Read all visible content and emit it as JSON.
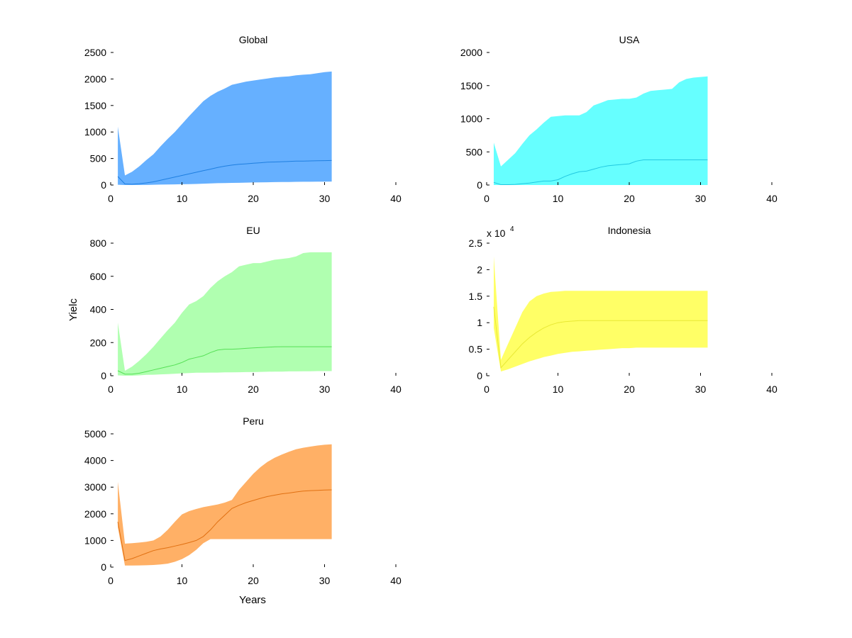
{
  "figure": {
    "ylabel": "Yielc",
    "xlabel": "Years"
  },
  "chart_data": [
    {
      "type": "area",
      "title": "Global",
      "color": "#66b0ff",
      "line_color": "#1f7fe0",
      "xlim": [
        0,
        40
      ],
      "ylim": [
        0,
        2500
      ],
      "xticks": [
        0,
        10,
        20,
        30,
        40
      ],
      "yticks": [
        0,
        500,
        1000,
        1500,
        2000,
        2500
      ],
      "ytick_labels": [
        "0",
        "500",
        "1000",
        "1500",
        "2000",
        "2500"
      ],
      "exponent_label": "",
      "x": [
        1,
        2,
        3,
        4,
        5,
        6,
        7,
        8,
        9,
        10,
        11,
        12,
        13,
        14,
        15,
        16,
        17,
        18,
        19,
        20,
        21,
        22,
        23,
        24,
        25,
        26,
        27,
        28,
        29,
        30,
        31
      ],
      "upper": [
        1100,
        180,
        250,
        350,
        470,
        580,
        730,
        870,
        1000,
        1150,
        1300,
        1440,
        1580,
        1680,
        1760,
        1820,
        1890,
        1920,
        1950,
        1970,
        1990,
        2010,
        2030,
        2040,
        2050,
        2070,
        2080,
        2090,
        2110,
        2130,
        2140
      ],
      "median": [
        160,
        20,
        15,
        25,
        40,
        60,
        90,
        120,
        150,
        180,
        210,
        240,
        270,
        300,
        330,
        355,
        375,
        390,
        400,
        410,
        420,
        430,
        435,
        440,
        445,
        450,
        452,
        455,
        458,
        460,
        462
      ],
      "lower": [
        5,
        0,
        0,
        0,
        2,
        5,
        8,
        10,
        12,
        15,
        18,
        20,
        25,
        30,
        35,
        38,
        40,
        42,
        45,
        48,
        50,
        52,
        55,
        57,
        58,
        60,
        61,
        62,
        63,
        64,
        65
      ]
    },
    {
      "type": "area",
      "title": "USA",
      "color": "#66ffff",
      "line_color": "#22c8e0",
      "xlim": [
        0,
        40
      ],
      "ylim": [
        0,
        2000
      ],
      "xticks": [
        0,
        10,
        20,
        30,
        40
      ],
      "yticks": [
        0,
        500,
        1000,
        1500,
        2000
      ],
      "ytick_labels": [
        "0",
        "500",
        "1000",
        "1500",
        "2000"
      ],
      "exponent_label": "",
      "x": [
        1,
        2,
        3,
        4,
        5,
        6,
        7,
        8,
        9,
        10,
        11,
        12,
        13,
        14,
        15,
        16,
        17,
        18,
        19,
        20,
        21,
        22,
        23,
        24,
        25,
        26,
        27,
        28,
        29,
        30,
        31
      ],
      "upper": [
        640,
        280,
        380,
        480,
        620,
        750,
        840,
        940,
        1030,
        1040,
        1050,
        1050,
        1050,
        1100,
        1200,
        1240,
        1280,
        1290,
        1300,
        1300,
        1320,
        1380,
        1420,
        1430,
        1440,
        1450,
        1550,
        1600,
        1620,
        1630,
        1640
      ],
      "median": [
        40,
        5,
        5,
        10,
        20,
        30,
        45,
        60,
        60,
        80,
        130,
        170,
        200,
        210,
        240,
        270,
        290,
        300,
        310,
        320,
        360,
        380,
        380,
        380,
        380,
        380,
        380,
        380,
        380,
        380,
        380
      ],
      "lower": [
        0,
        0,
        0,
        0,
        0,
        0,
        0,
        0,
        0,
        0,
        0,
        0,
        0,
        0,
        0,
        0,
        0,
        0,
        0,
        0,
        0,
        0,
        0,
        0,
        0,
        0,
        0,
        0,
        0,
        0,
        0
      ]
    },
    {
      "type": "area",
      "title": "EU",
      "color": "#b0ffb0",
      "line_color": "#55e055",
      "xlim": [
        0,
        40
      ],
      "ylim": [
        0,
        800
      ],
      "xticks": [
        0,
        10,
        20,
        30,
        40
      ],
      "yticks": [
        0,
        200,
        400,
        600,
        800
      ],
      "ytick_labels": [
        "0",
        "200",
        "400",
        "600",
        "800"
      ],
      "exponent_label": "",
      "x": [
        1,
        2,
        3,
        4,
        5,
        6,
        7,
        8,
        9,
        10,
        11,
        12,
        13,
        14,
        15,
        16,
        17,
        18,
        19,
        20,
        21,
        22,
        23,
        24,
        25,
        26,
        27,
        28,
        29,
        30,
        31
      ],
      "upper": [
        320,
        30,
        55,
        90,
        130,
        175,
        225,
        275,
        320,
        380,
        430,
        450,
        480,
        530,
        570,
        600,
        625,
        660,
        670,
        680,
        680,
        690,
        700,
        705,
        710,
        720,
        740,
        745,
        745,
        745,
        745
      ],
      "median": [
        30,
        10,
        10,
        15,
        25,
        35,
        45,
        55,
        65,
        80,
        100,
        110,
        120,
        140,
        155,
        160,
        160,
        162,
        165,
        168,
        170,
        172,
        174,
        175,
        175,
        175,
        175,
        175,
        175,
        175,
        175
      ],
      "lower": [
        2,
        0,
        0,
        2,
        5,
        6,
        8,
        10,
        12,
        14,
        16,
        18,
        18,
        19,
        19,
        20,
        20,
        21,
        22,
        22,
        23,
        24,
        25,
        25,
        26,
        26,
        27,
        27,
        28,
        28,
        28
      ]
    },
    {
      "type": "area",
      "title": "Indonesia",
      "color": "#ffff66",
      "line_color": "#e8e833",
      "xlim": [
        0,
        40
      ],
      "ylim": [
        0,
        2.5
      ],
      "xticks": [
        0,
        10,
        20,
        30,
        40
      ],
      "yticks": [
        0,
        0.5,
        1,
        1.5,
        2,
        2.5
      ],
      "ytick_labels": [
        "0",
        "0.5",
        "1",
        "1.5",
        "2",
        "2.5"
      ],
      "exponent_label": "x 10",
      "exponent_power": "4",
      "x": [
        1,
        2,
        3,
        4,
        5,
        6,
        7,
        8,
        9,
        10,
        11,
        12,
        13,
        14,
        15,
        16,
        17,
        18,
        19,
        20,
        21,
        22,
        23,
        24,
        25,
        26,
        27,
        28,
        29,
        30,
        31
      ],
      "upper": [
        2.25,
        0.3,
        0.6,
        0.9,
        1.2,
        1.4,
        1.5,
        1.55,
        1.58,
        1.59,
        1.6,
        1.6,
        1.6,
        1.6,
        1.6,
        1.6,
        1.6,
        1.6,
        1.6,
        1.6,
        1.6,
        1.6,
        1.6,
        1.6,
        1.6,
        1.6,
        1.6,
        1.6,
        1.6,
        1.6,
        1.6
      ],
      "median": [
        1.3,
        0.15,
        0.3,
        0.45,
        0.6,
        0.72,
        0.82,
        0.9,
        0.96,
        1.0,
        1.02,
        1.03,
        1.04,
        1.04,
        1.04,
        1.04,
        1.04,
        1.04,
        1.04,
        1.04,
        1.04,
        1.04,
        1.04,
        1.04,
        1.04,
        1.04,
        1.04,
        1.04,
        1.04,
        1.04,
        1.04
      ],
      "lower": [
        0.9,
        0.08,
        0.12,
        0.17,
        0.22,
        0.27,
        0.31,
        0.35,
        0.38,
        0.41,
        0.43,
        0.45,
        0.46,
        0.47,
        0.48,
        0.49,
        0.5,
        0.51,
        0.52,
        0.52,
        0.53,
        0.53,
        0.53,
        0.53,
        0.53,
        0.53,
        0.53,
        0.53,
        0.53,
        0.53,
        0.53
      ]
    },
    {
      "type": "area",
      "title": "Peru",
      "color": "#ffb066",
      "line_color": "#e07012",
      "xlim": [
        0,
        40
      ],
      "ylim": [
        0,
        5000
      ],
      "xticks": [
        0,
        10,
        20,
        30,
        40
      ],
      "yticks": [
        0,
        1000,
        2000,
        3000,
        4000,
        5000
      ],
      "ytick_labels": [
        "0",
        "1000",
        "2000",
        "3000",
        "4000",
        "5000"
      ],
      "exponent_label": "",
      "x": [
        1,
        2,
        3,
        4,
        5,
        6,
        7,
        8,
        9,
        10,
        11,
        12,
        13,
        14,
        15,
        16,
        17,
        18,
        19,
        20,
        21,
        22,
        23,
        24,
        25,
        26,
        27,
        28,
        29,
        30,
        31
      ],
      "upper": [
        3200,
        880,
        900,
        920,
        950,
        1000,
        1150,
        1400,
        1700,
        1980,
        2100,
        2180,
        2250,
        2300,
        2350,
        2420,
        2520,
        2900,
        3200,
        3500,
        3750,
        3950,
        4100,
        4220,
        4330,
        4420,
        4480,
        4520,
        4560,
        4590,
        4610
      ],
      "median": [
        1700,
        250,
        320,
        420,
        520,
        620,
        680,
        730,
        790,
        850,
        920,
        1000,
        1150,
        1400,
        1700,
        1950,
        2200,
        2320,
        2420,
        2500,
        2580,
        2650,
        2700,
        2750,
        2780,
        2820,
        2850,
        2870,
        2880,
        2890,
        2900
      ],
      "lower": [
        1500,
        60,
        60,
        65,
        70,
        80,
        100,
        130,
        200,
        300,
        450,
        650,
        900,
        1050,
        1050,
        1050,
        1050,
        1050,
        1050,
        1050,
        1050,
        1050,
        1050,
        1050,
        1050,
        1050,
        1050,
        1050,
        1050,
        1050,
        1050
      ]
    }
  ]
}
